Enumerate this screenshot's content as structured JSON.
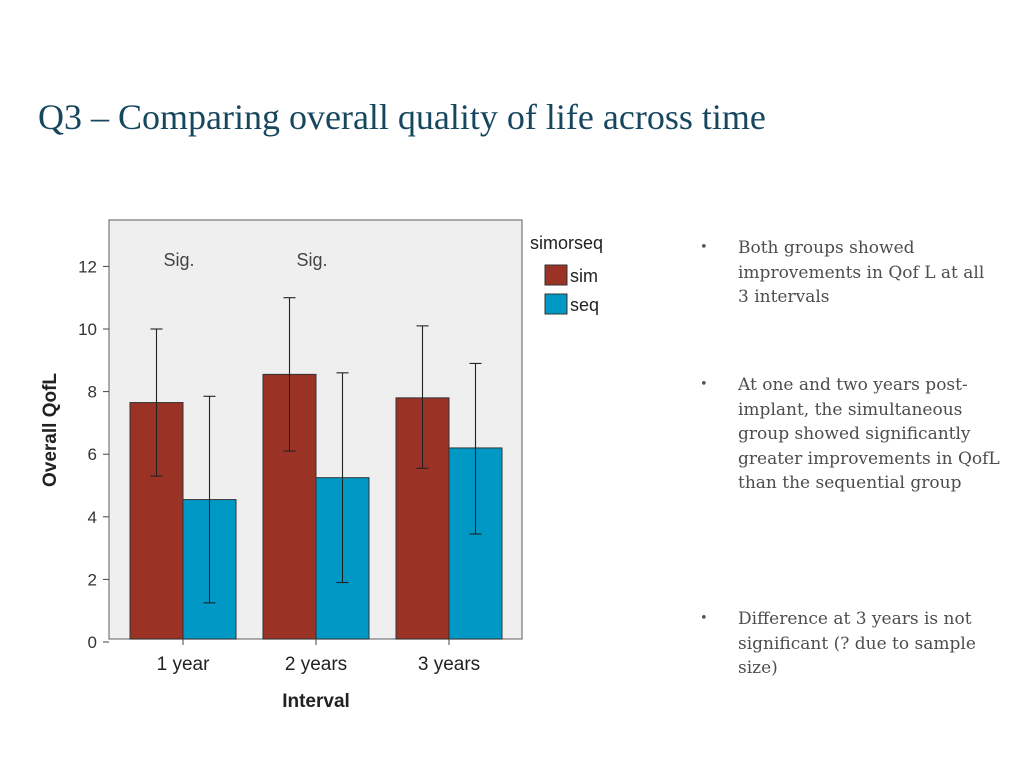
{
  "slide": {
    "title": "Q3 – Comparing overall quality of life across time",
    "bullets": [
      "Both groups showed improvements in Qof L at all 3 intervals",
      "At one and two years post-implant, the simultaneous group showed significantly greater improvements in QofL than the sequential group",
      "Difference at 3 years is not significant (? due to sample size)"
    ],
    "bullet_glyph": "•"
  },
  "colors": {
    "title": "#17475f",
    "sim": "#9a3326",
    "seq": "#0099c6",
    "plot_background": "#efefef",
    "body_text": "#4d4d4d"
  },
  "chart_data": {
    "type": "bar",
    "categories": [
      "1 year",
      "2 years",
      "3 years"
    ],
    "series": [
      {
        "name": "sim",
        "values": [
          7.65,
          8.55,
          7.8
        ],
        "error_low": [
          5.3,
          6.1,
          5.55
        ],
        "error_high": [
          10.0,
          11.0,
          10.1
        ]
      },
      {
        "name": "seq",
        "values": [
          4.55,
          5.25,
          6.2
        ],
        "error_low": [
          1.25,
          1.9,
          3.45
        ],
        "error_high": [
          7.85,
          8.6,
          8.9
        ]
      }
    ],
    "xlabel": "Interval",
    "ylabel": "Overall QofL",
    "ylim": [
      0,
      13.2
    ],
    "yticks": [
      0,
      2,
      4,
      6,
      8,
      10,
      12
    ],
    "legend_title": "simorseq",
    "legend_position": "right",
    "annotations": [
      {
        "category": "1 year",
        "text": "Sig."
      },
      {
        "category": "2 years",
        "text": "Sig."
      }
    ],
    "grid": false
  }
}
